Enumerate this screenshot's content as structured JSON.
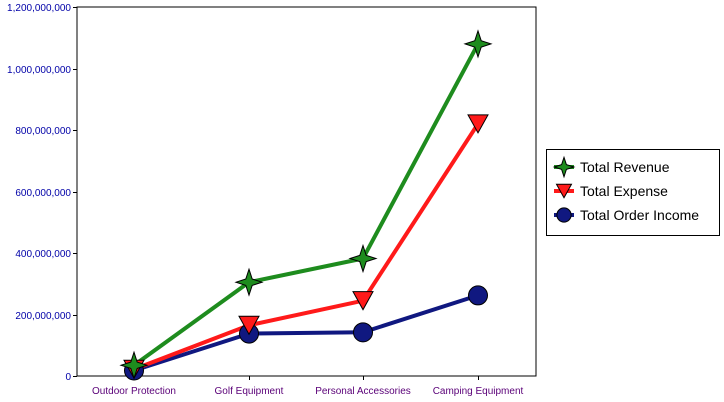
{
  "chart_data": {
    "type": "line",
    "title": "",
    "xlabel": "",
    "ylabel": "",
    "categories": [
      "Outdoor Protection",
      "Golf Equipment",
      "Personal Accessories",
      "Camping Equipment"
    ],
    "ylim": [
      0,
      1200000000
    ],
    "y_ticks": [
      {
        "value": 0,
        "label": "0"
      },
      {
        "value": 200000000,
        "label": "200,000,000"
      },
      {
        "value": 400000000,
        "label": "400,000,000"
      },
      {
        "value": 600000000,
        "label": "600,000,000"
      },
      {
        "value": 800000000,
        "label": "800,000,000"
      },
      {
        "value": 1000000000,
        "label": "1,000,000,000"
      },
      {
        "value": 1200000000,
        "label": "1,200,000,000"
      }
    ],
    "grid": true,
    "legend_position": "right",
    "series": [
      {
        "name": "Total Revenue",
        "values": [
          35000000,
          305000000,
          382000000,
          1080000000
        ],
        "color": "#1E8C1E",
        "marker": "star"
      },
      {
        "name": "Total Expense",
        "values": [
          22000000,
          165000000,
          245000000,
          820000000
        ],
        "color": "#FF1A1A",
        "marker": "triangle-down"
      },
      {
        "name": "Total Order Income",
        "values": [
          18000000,
          138000000,
          142000000,
          262000000
        ],
        "color": "#101880",
        "marker": "circle"
      }
    ]
  }
}
